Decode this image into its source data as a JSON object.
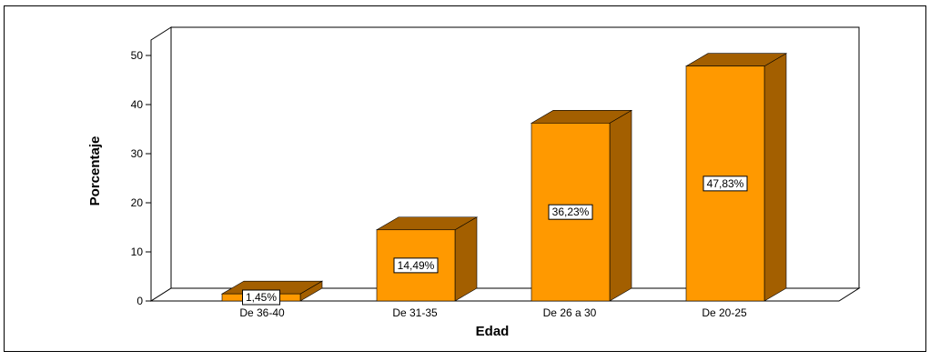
{
  "chart_data": {
    "type": "bar",
    "title": "",
    "xlabel": "Edad",
    "ylabel": "Porcentaje",
    "categories": [
      "De 36-40",
      "De 31-35",
      "De 26 a 30",
      "De 20-25"
    ],
    "values": [
      1.45,
      14.49,
      36.23,
      47.83
    ],
    "data_labels": [
      "1,45%",
      "14,49%",
      "36,23%",
      "47,83%"
    ],
    "yticks": [
      0,
      10,
      20,
      30,
      40,
      50
    ],
    "ylim": [
      0,
      50
    ],
    "grid": false,
    "legend": "none",
    "three_d": true,
    "colors": {
      "bar_front": "#ff9900",
      "bar_side": "#a35f00",
      "bar_top": "#a35f00",
      "frame": "#000000",
      "background": "#ffffff"
    }
  }
}
